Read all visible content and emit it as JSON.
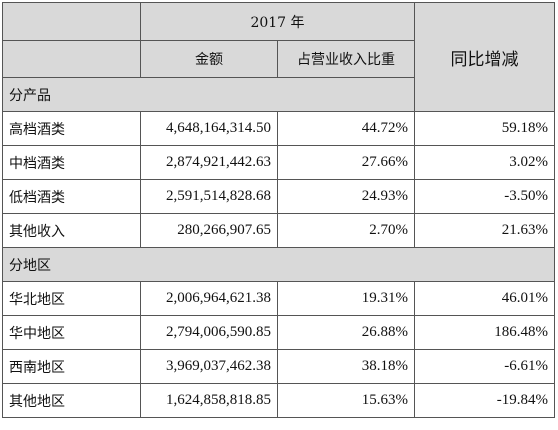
{
  "header": {
    "year": "2017 年",
    "amount": "金额",
    "share": "占营业收入比重",
    "yoy": "同比增减"
  },
  "sections": [
    {
      "title": "分产品",
      "rows": [
        [
          "高档酒类",
          "4,648,164,314.50",
          "44.72%",
          "59.18%"
        ],
        [
          "中档酒类",
          "2,874,921,442.63",
          "27.66%",
          "3.02%"
        ],
        [
          "低档酒类",
          "2,591,514,828.68",
          "24.93%",
          "-3.50%"
        ],
        [
          "其他收入",
          "280,266,907.65",
          "2.70%",
          "21.63%"
        ]
      ]
    },
    {
      "title": "分地区",
      "rows": [
        [
          "华北地区",
          "2,006,964,621.38",
          "19.31%",
          "46.01%"
        ],
        [
          "华中地区",
          "2,794,006,590.85",
          "26.88%",
          "186.48%"
        ],
        [
          "西南地区",
          "3,969,037,462.38",
          "38.18%",
          "-6.61%"
        ],
        [
          "其他地区",
          "1,624,858,818.85",
          "15.63%",
          "-19.84%"
        ]
      ]
    }
  ]
}
